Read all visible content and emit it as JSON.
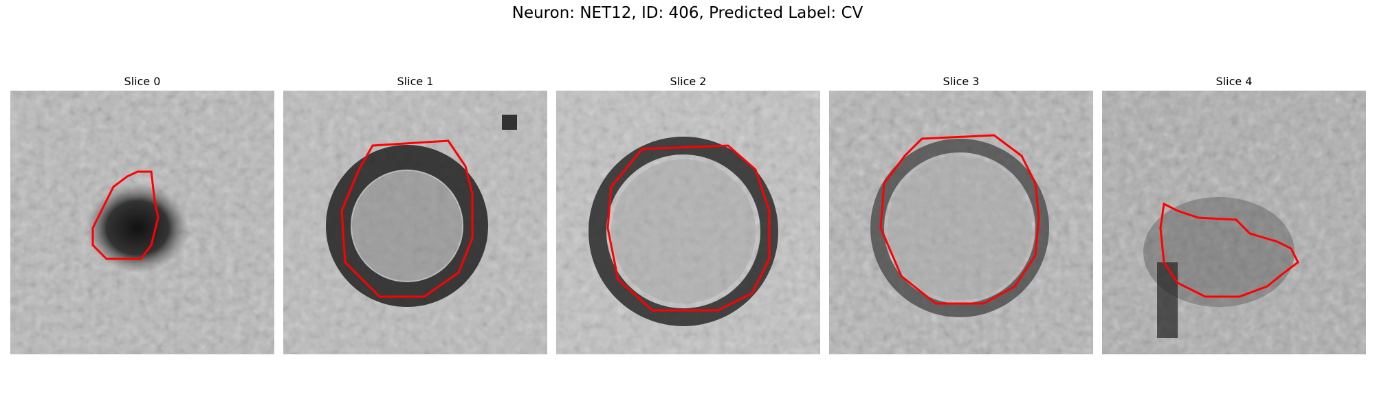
{
  "figure": {
    "title": "Neuron: NET12, ID: 406, Predicted Label: CV"
  },
  "panels": [
    {
      "title": "Slice 0"
    },
    {
      "title": "Slice 1"
    },
    {
      "title": "Slice 2"
    },
    {
      "title": "Slice 3"
    },
    {
      "title": "Slice 4"
    }
  ],
  "colors": {
    "contour": "#ff0000",
    "background": "#ffffff"
  }
}
